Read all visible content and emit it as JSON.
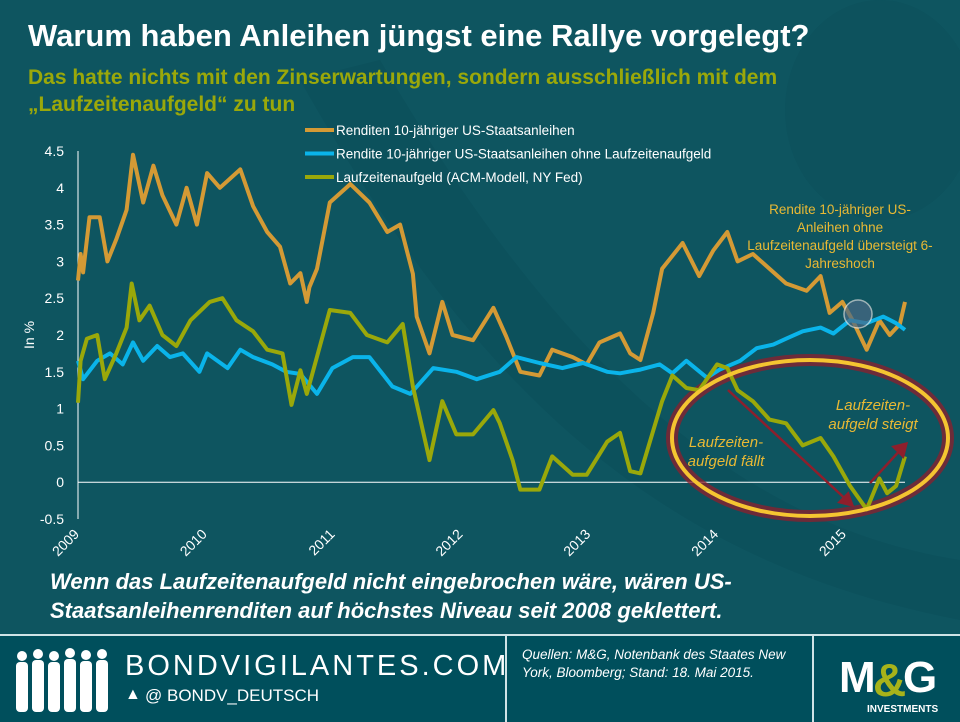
{
  "header": {
    "title": "Warum haben Anleihen jüngst eine Rallye vorgelegt?",
    "subtitle": "Das hatte nichts mit den Zinserwartungen,  sondern ausschließlich mit dem „Laufzeitenaufgeld“  zu tun"
  },
  "annotations": {
    "note": "Rendite 10-jähriger US-Anleihen ohne Laufzeitenaufgeld übersteigt 6-Jahreshoch",
    "falls": "Laufzeiten-aufgeld fällt",
    "rises": "Laufzeiten-aufgeld steigt"
  },
  "bottom_text": "Wenn das Laufzeitenaufgeld nicht eingebrochen wäre, wären US-Staatsanleihenrenditen auf höchstes Niveau seit 2008 geklettert.",
  "footer": {
    "site": "BONDVIGILANTES.COM",
    "handle": "@ BONDV_DEUTSCH",
    "sources": "Quellen: M&G, Notenbank des Staates New York, Bloomberg; Stand: 18. Mai 2015.",
    "logo_text": "M&G",
    "logo_sub": "INVESTMENTS",
    "twitter_icon": "twitter-bird-icon"
  },
  "colors": {
    "yield": "#d49a35",
    "ex_premium": "#0ab4ea",
    "premium": "#9aa80a",
    "highlight": "#f5c531",
    "arrow": "#8e1f2c"
  },
  "chart_data": {
    "type": "line",
    "ylabel": "In %",
    "ylim": [
      -0.5,
      4.5
    ],
    "yticks": [
      "-0.5",
      "0",
      "0.5",
      "1",
      "1.5",
      "2",
      "2.5",
      "3",
      "3.5",
      "4",
      "4.5"
    ],
    "ytick_values": [
      -0.5,
      0,
      0.5,
      1,
      1.5,
      2,
      2.5,
      3,
      3.5,
      4,
      4.5
    ],
    "xlim": [
      2009,
      2015.47
    ],
    "xticks": [
      "2009",
      "2010",
      "2011",
      "2012",
      "2013",
      "2014",
      "2015"
    ],
    "xtick_values": [
      2009,
      2010,
      2011,
      2012,
      2013,
      2014,
      2015
    ],
    "legend_position": "top-center",
    "series": [
      {
        "name": "Renditen 10-jähriger US-Staatsanleihen",
        "color": "#d49a35",
        "points": [
          [
            2009.0,
            2.74
          ],
          [
            2009.02,
            3.1
          ],
          [
            2009.04,
            2.85
          ],
          [
            2009.09,
            3.6
          ],
          [
            2009.17,
            3.6
          ],
          [
            2009.23,
            3.0
          ],
          [
            2009.3,
            3.3
          ],
          [
            2009.38,
            3.7
          ],
          [
            2009.43,
            4.45
          ],
          [
            2009.51,
            3.8
          ],
          [
            2009.59,
            4.3
          ],
          [
            2009.66,
            3.9
          ],
          [
            2009.77,
            3.5
          ],
          [
            2009.85,
            4.0
          ],
          [
            2009.93,
            3.5
          ],
          [
            2010.01,
            4.2
          ],
          [
            2010.11,
            4.0
          ],
          [
            2010.27,
            4.25
          ],
          [
            2010.37,
            3.75
          ],
          [
            2010.48,
            3.4
          ],
          [
            2010.58,
            3.2
          ],
          [
            2010.66,
            2.7
          ],
          [
            2010.74,
            2.84
          ],
          [
            2010.79,
            2.45
          ],
          [
            2010.81,
            2.65
          ],
          [
            2010.87,
            2.9
          ],
          [
            2010.97,
            3.8
          ],
          [
            2011.13,
            4.05
          ],
          [
            2011.28,
            3.8
          ],
          [
            2011.42,
            3.4
          ],
          [
            2011.52,
            3.5
          ],
          [
            2011.62,
            2.83
          ],
          [
            2011.65,
            2.25
          ],
          [
            2011.75,
            1.75
          ],
          [
            2011.85,
            2.45
          ],
          [
            2011.93,
            2.0
          ],
          [
            2012.09,
            1.93
          ],
          [
            2012.25,
            2.37
          ],
          [
            2012.35,
            1.98
          ],
          [
            2012.46,
            1.5
          ],
          [
            2012.61,
            1.45
          ],
          [
            2012.71,
            1.8
          ],
          [
            2012.87,
            1.7
          ],
          [
            2012.98,
            1.6
          ],
          [
            2013.08,
            1.9
          ],
          [
            2013.24,
            2.02
          ],
          [
            2013.32,
            1.75
          ],
          [
            2013.4,
            1.66
          ],
          [
            2013.5,
            2.3
          ],
          [
            2013.57,
            2.9
          ],
          [
            2013.73,
            3.25
          ],
          [
            2013.86,
            2.8
          ],
          [
            2013.97,
            3.15
          ],
          [
            2014.08,
            3.4
          ],
          [
            2014.16,
            3.0
          ],
          [
            2014.28,
            3.1
          ],
          [
            2014.41,
            2.9
          ],
          [
            2014.54,
            2.7
          ],
          [
            2014.7,
            2.6
          ],
          [
            2014.81,
            2.8
          ],
          [
            2014.88,
            2.3
          ],
          [
            2014.98,
            2.45
          ],
          [
            2015.06,
            2.2
          ],
          [
            2015.17,
            1.8
          ],
          [
            2015.27,
            2.2
          ],
          [
            2015.35,
            2.0
          ],
          [
            2015.43,
            2.15
          ],
          [
            2015.47,
            2.45
          ]
        ]
      },
      {
        "name": "Rendite 10-jähriger US-Staatsanleihen ohne Laufzeitenaufgeld",
        "color": "#0ab4ea",
        "points": [
          [
            2009.0,
            1.65
          ],
          [
            2009.04,
            1.4
          ],
          [
            2009.15,
            1.65
          ],
          [
            2009.25,
            1.75
          ],
          [
            2009.35,
            1.6
          ],
          [
            2009.43,
            1.9
          ],
          [
            2009.51,
            1.65
          ],
          [
            2009.62,
            1.85
          ],
          [
            2009.72,
            1.7
          ],
          [
            2009.82,
            1.75
          ],
          [
            2009.95,
            1.5
          ],
          [
            2010.01,
            1.75
          ],
          [
            2010.17,
            1.55
          ],
          [
            2010.27,
            1.8
          ],
          [
            2010.37,
            1.7
          ],
          [
            2010.52,
            1.6
          ],
          [
            2010.63,
            1.5
          ],
          [
            2010.74,
            1.47
          ],
          [
            2010.87,
            1.2
          ],
          [
            2010.99,
            1.55
          ],
          [
            2011.15,
            1.7
          ],
          [
            2011.28,
            1.7
          ],
          [
            2011.46,
            1.3
          ],
          [
            2011.6,
            1.2
          ],
          [
            2011.78,
            1.55
          ],
          [
            2011.96,
            1.5
          ],
          [
            2012.12,
            1.4
          ],
          [
            2012.3,
            1.5
          ],
          [
            2012.43,
            1.7
          ],
          [
            2012.61,
            1.62
          ],
          [
            2012.79,
            1.55
          ],
          [
            2012.95,
            1.62
          ],
          [
            2013.14,
            1.5
          ],
          [
            2013.24,
            1.48
          ],
          [
            2013.4,
            1.53
          ],
          [
            2013.55,
            1.6
          ],
          [
            2013.65,
            1.48
          ],
          [
            2013.76,
            1.65
          ],
          [
            2013.92,
            1.42
          ],
          [
            2014.02,
            1.53
          ],
          [
            2014.18,
            1.65
          ],
          [
            2014.31,
            1.82
          ],
          [
            2014.44,
            1.87
          ],
          [
            2014.54,
            1.95
          ],
          [
            2014.67,
            2.05
          ],
          [
            2014.81,
            2.1
          ],
          [
            2014.91,
            2.02
          ],
          [
            2015.04,
            2.2
          ],
          [
            2015.17,
            2.16
          ],
          [
            2015.3,
            2.25
          ],
          [
            2015.4,
            2.16
          ],
          [
            2015.47,
            2.07
          ]
        ]
      },
      {
        "name": "Laufzeitenaufgeld (ACM-Modell, NY Fed)",
        "color": "#9aa80a",
        "points": [
          [
            2009.0,
            1.08
          ],
          [
            2009.02,
            1.65
          ],
          [
            2009.07,
            1.95
          ],
          [
            2009.15,
            2.0
          ],
          [
            2009.21,
            1.4
          ],
          [
            2009.3,
            1.75
          ],
          [
            2009.38,
            2.1
          ],
          [
            2009.42,
            2.7
          ],
          [
            2009.48,
            2.2
          ],
          [
            2009.56,
            2.4
          ],
          [
            2009.66,
            2.0
          ],
          [
            2009.77,
            1.85
          ],
          [
            2009.88,
            2.2
          ],
          [
            2010.03,
            2.45
          ],
          [
            2010.13,
            2.5
          ],
          [
            2010.24,
            2.2
          ],
          [
            2010.37,
            2.05
          ],
          [
            2010.48,
            1.8
          ],
          [
            2010.6,
            1.75
          ],
          [
            2010.67,
            1.05
          ],
          [
            2010.74,
            1.52
          ],
          [
            2010.79,
            1.2
          ],
          [
            2010.97,
            2.34
          ],
          [
            2011.13,
            2.3
          ],
          [
            2011.26,
            2.0
          ],
          [
            2011.42,
            1.9
          ],
          [
            2011.54,
            2.15
          ],
          [
            2011.62,
            1.3
          ],
          [
            2011.75,
            0.3
          ],
          [
            2011.85,
            1.1
          ],
          [
            2011.96,
            0.65
          ],
          [
            2012.09,
            0.65
          ],
          [
            2012.25,
            0.98
          ],
          [
            2012.3,
            0.8
          ],
          [
            2012.4,
            0.3
          ],
          [
            2012.46,
            -0.1
          ],
          [
            2012.61,
            -0.1
          ],
          [
            2012.71,
            0.35
          ],
          [
            2012.87,
            0.1
          ],
          [
            2012.98,
            0.1
          ],
          [
            2013.14,
            0.55
          ],
          [
            2013.24,
            0.67
          ],
          [
            2013.32,
            0.15
          ],
          [
            2013.4,
            0.12
          ],
          [
            2013.5,
            0.7
          ],
          [
            2013.57,
            1.1
          ],
          [
            2013.65,
            1.45
          ],
          [
            2013.76,
            1.28
          ],
          [
            2013.86,
            1.25
          ],
          [
            2014.0,
            1.6
          ],
          [
            2014.08,
            1.55
          ],
          [
            2014.16,
            1.25
          ],
          [
            2014.28,
            1.1
          ],
          [
            2014.41,
            0.85
          ],
          [
            2014.54,
            0.8
          ],
          [
            2014.67,
            0.5
          ],
          [
            2014.81,
            0.6
          ],
          [
            2014.91,
            0.35
          ],
          [
            2015.04,
            -0.05
          ],
          [
            2015.17,
            -0.37
          ],
          [
            2015.27,
            0.05
          ],
          [
            2015.33,
            -0.15
          ],
          [
            2015.4,
            -0.05
          ],
          [
            2015.47,
            0.35
          ]
        ]
      }
    ]
  }
}
